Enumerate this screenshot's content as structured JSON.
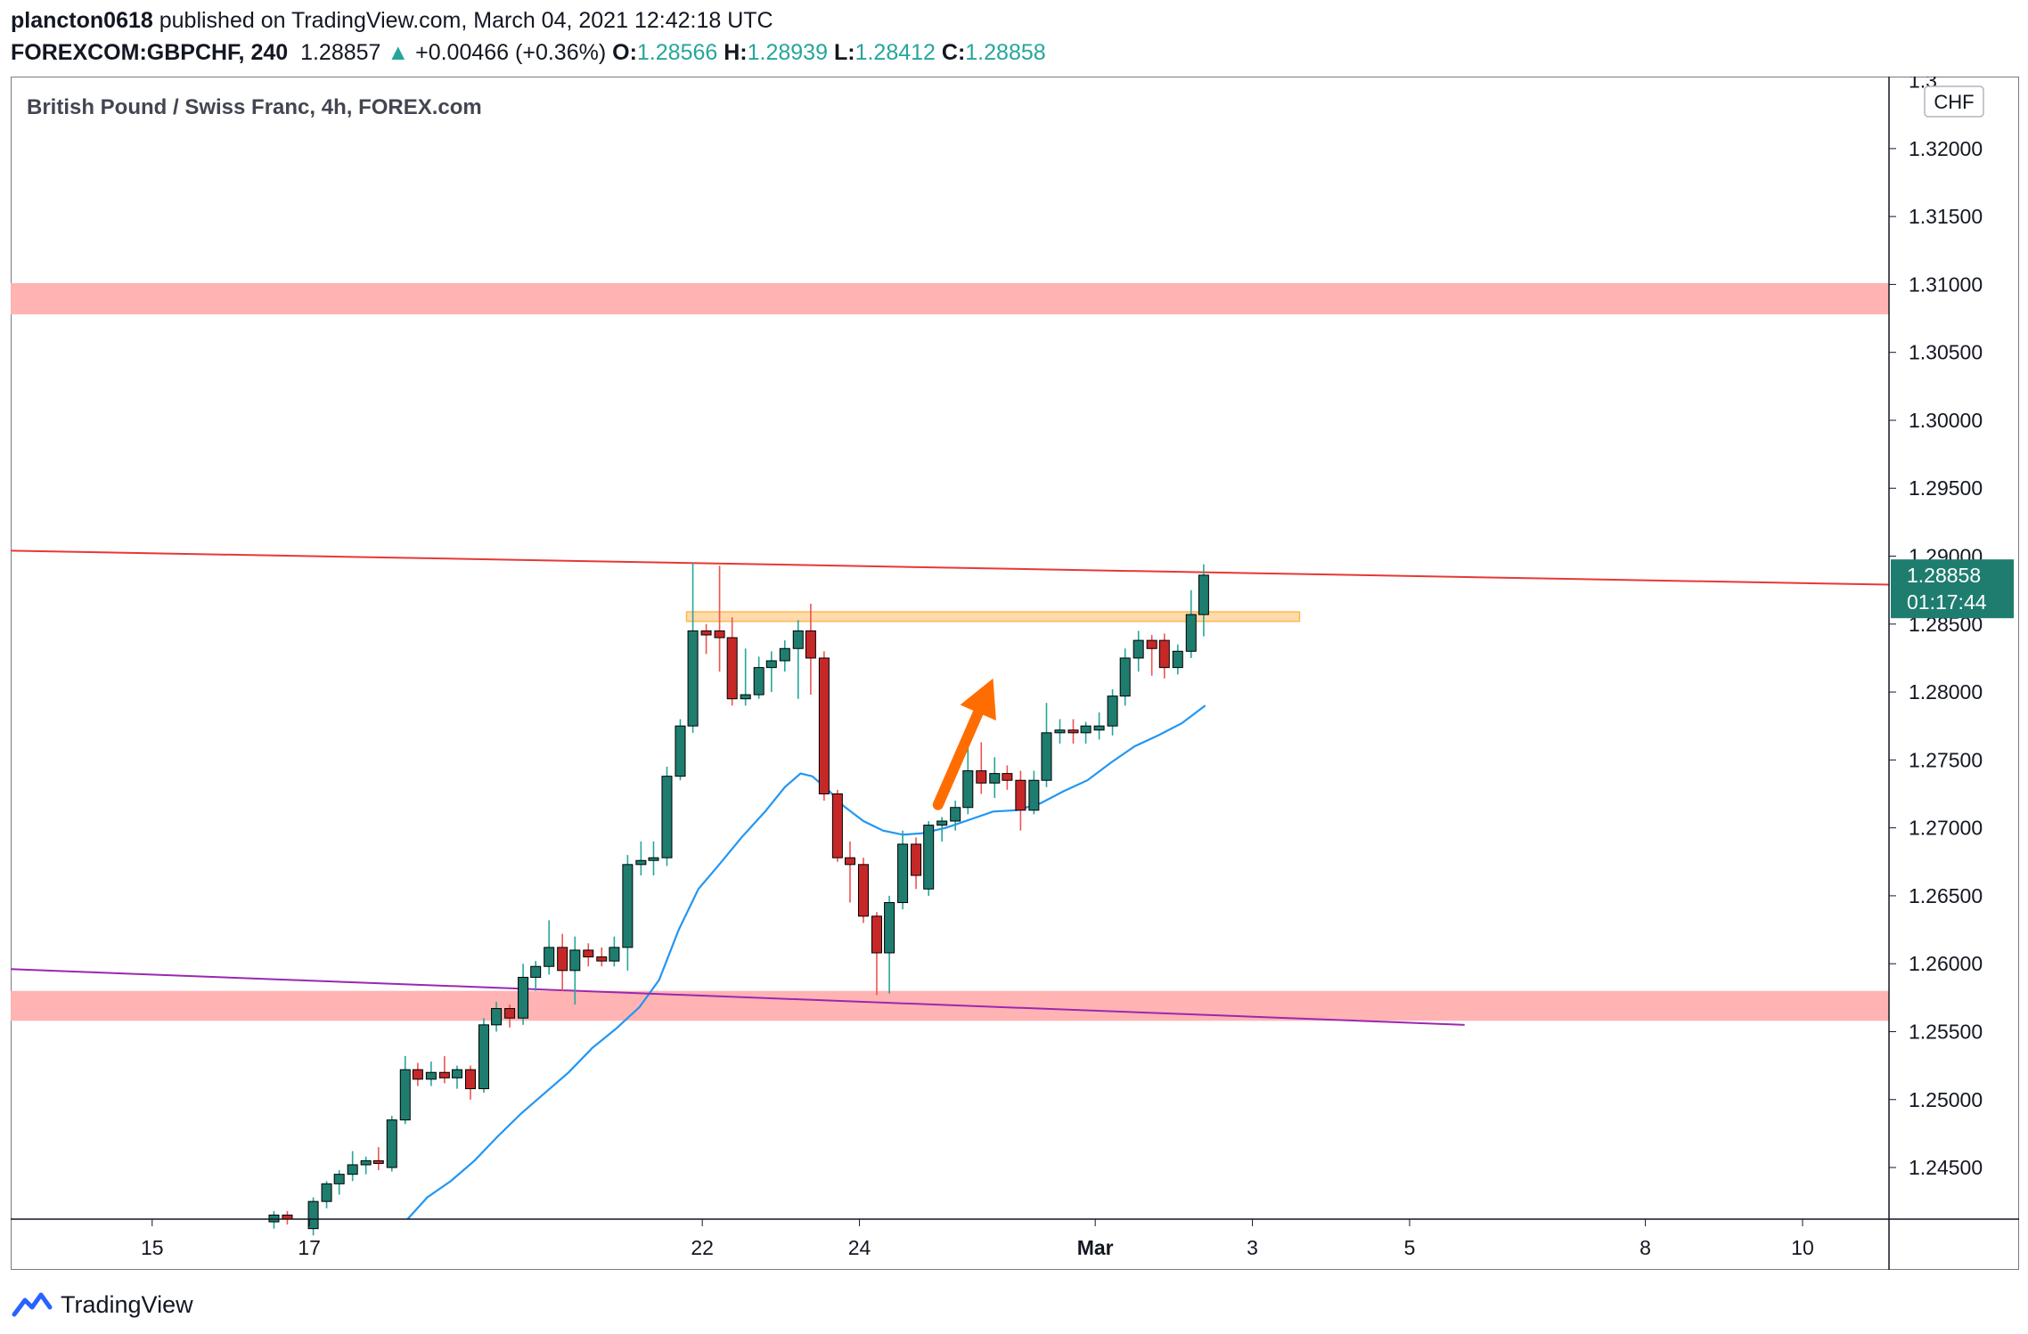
{
  "header": {
    "author": "plancton0618",
    "published": "published on TradingView.com, March 04, 2021 12:42:18 UTC",
    "symbol": "FOREXCOM:GBPCHF, 240",
    "last": "1.28857",
    "change_arrow": "▲",
    "change": "+0.00466 (+0.36%)",
    "o_label": "O:",
    "o": "1.28566",
    "h_label": "H:",
    "h": "1.28939",
    "l_label": "L:",
    "l": "1.28412",
    "c_label": "C:",
    "c": "1.28858"
  },
  "footer": {
    "brand": "TradingView",
    "logo_icon": "tradingview-logo-icon"
  },
  "colors": {
    "up": "#1e7d6f",
    "down": "#c62828",
    "wick_up": "#26a69a",
    "wick_down": "#ef5350",
    "ma": "#2196f3",
    "resistance_line": "#e53935",
    "support_line": "#9c27b0",
    "zone": "#ffb3b3",
    "zone_orange": "#ffd59e",
    "arrow": "#ff6d00",
    "price_tag": "#1e7d6f"
  },
  "chart_data": {
    "type": "candlestick",
    "title": "British Pound / Swiss Franc, 4h, FOREX.com",
    "currency_label": "CHF",
    "price_tag": {
      "value": "1.28858",
      "countdown": "01:17:44"
    },
    "y_ticks": [
      "1.32000",
      "1.31500",
      "1.31000",
      "1.30500",
      "1.30000",
      "1.29500",
      "1.29000",
      "1.28500",
      "1.28000",
      "1.27500",
      "1.27000",
      "1.26500",
      "1.26000",
      "1.25500",
      "1.25000",
      "1.24500"
    ],
    "y_top_tick_partial": "1.3",
    "ylim": [
      1.2412,
      1.3253
    ],
    "x_ticks": [
      {
        "label": "15",
        "day": 15
      },
      {
        "label": "17",
        "day": 17
      },
      {
        "label": "22",
        "day": 22
      },
      {
        "label": "24",
        "day": 24
      },
      {
        "label": "Mar",
        "day": 27
      },
      {
        "label": "3",
        "day": 29
      },
      {
        "label": "5",
        "day": 31
      },
      {
        "label": "8",
        "day": 34
      },
      {
        "label": "10",
        "day": 36
      }
    ],
    "xlim": [
      13.2,
      37.1
    ],
    "candles": [
      {
        "t": 16.55,
        "o": 1.241,
        "h": 1.2418,
        "l": 1.2405,
        "c": 1.2415
      },
      {
        "t": 16.72,
        "o": 1.2415,
        "h": 1.2418,
        "l": 1.2408,
        "c": 1.2412
      },
      {
        "t": 17.05,
        "o": 1.2405,
        "h": 1.2428,
        "l": 1.24,
        "c": 1.2425
      },
      {
        "t": 17.22,
        "o": 1.2425,
        "h": 1.244,
        "l": 1.242,
        "c": 1.2438
      },
      {
        "t": 17.38,
        "o": 1.2438,
        "h": 1.2448,
        "l": 1.243,
        "c": 1.2445
      },
      {
        "t": 17.55,
        "o": 1.2445,
        "h": 1.2462,
        "l": 1.244,
        "c": 1.2452
      },
      {
        "t": 17.72,
        "o": 1.2452,
        "h": 1.2458,
        "l": 1.2445,
        "c": 1.2455
      },
      {
        "t": 17.88,
        "o": 1.2455,
        "h": 1.2465,
        "l": 1.2448,
        "c": 1.2453
      },
      {
        "t": 18.05,
        "o": 1.245,
        "h": 1.2488,
        "l": 1.2447,
        "c": 1.2485
      },
      {
        "t": 18.22,
        "o": 1.2485,
        "h": 1.2532,
        "l": 1.2482,
        "c": 1.2522
      },
      {
        "t": 18.38,
        "o": 1.2522,
        "h": 1.2527,
        "l": 1.251,
        "c": 1.2515
      },
      {
        "t": 18.55,
        "o": 1.2515,
        "h": 1.2528,
        "l": 1.251,
        "c": 1.252
      },
      {
        "t": 18.72,
        "o": 1.252,
        "h": 1.2532,
        "l": 1.2512,
        "c": 1.2516
      },
      {
        "t": 18.88,
        "o": 1.2516,
        "h": 1.2525,
        "l": 1.2508,
        "c": 1.2522
      },
      {
        "t": 19.05,
        "o": 1.2522,
        "h": 1.2525,
        "l": 1.25,
        "c": 1.2508
      },
      {
        "t": 19.22,
        "o": 1.2508,
        "h": 1.256,
        "l": 1.2505,
        "c": 1.2555
      },
      {
        "t": 19.38,
        "o": 1.2555,
        "h": 1.2572,
        "l": 1.255,
        "c": 1.2567
      },
      {
        "t": 19.55,
        "o": 1.2567,
        "h": 1.257,
        "l": 1.2553,
        "c": 1.256
      },
      {
        "t": 19.72,
        "o": 1.256,
        "h": 1.26,
        "l": 1.2555,
        "c": 1.259
      },
      {
        "t": 19.88,
        "o": 1.259,
        "h": 1.2602,
        "l": 1.258,
        "c": 1.2598
      },
      {
        "t": 20.05,
        "o": 1.2598,
        "h": 1.2632,
        "l": 1.2592,
        "c": 1.2612
      },
      {
        "t": 20.22,
        "o": 1.2612,
        "h": 1.2622,
        "l": 1.258,
        "c": 1.2595
      },
      {
        "t": 20.38,
        "o": 1.2595,
        "h": 1.262,
        "l": 1.257,
        "c": 1.261
      },
      {
        "t": 20.55,
        "o": 1.261,
        "h": 1.2615,
        "l": 1.2598,
        "c": 1.2605
      },
      {
        "t": 20.72,
        "o": 1.2605,
        "h": 1.2612,
        "l": 1.2598,
        "c": 1.2602
      },
      {
        "t": 20.88,
        "o": 1.2602,
        "h": 1.262,
        "l": 1.2598,
        "c": 1.2612
      },
      {
        "t": 21.05,
        "o": 1.2612,
        "h": 1.268,
        "l": 1.2595,
        "c": 1.2673
      },
      {
        "t": 21.22,
        "o": 1.2673,
        "h": 1.269,
        "l": 1.2665,
        "c": 1.2676
      },
      {
        "t": 21.38,
        "o": 1.2676,
        "h": 1.269,
        "l": 1.2665,
        "c": 1.2678
      },
      {
        "t": 21.55,
        "o": 1.2678,
        "h": 1.2745,
        "l": 1.2672,
        "c": 1.2738
      },
      {
        "t": 21.72,
        "o": 1.2738,
        "h": 1.278,
        "l": 1.2735,
        "c": 1.2775
      },
      {
        "t": 21.88,
        "o": 1.2775,
        "h": 1.2895,
        "l": 1.277,
        "c": 1.2845
      },
      {
        "t": 22.05,
        "o": 1.2845,
        "h": 1.285,
        "l": 1.2828,
        "c": 1.2842
      },
      {
        "t": 22.22,
        "o": 1.2845,
        "h": 1.2893,
        "l": 1.2815,
        "c": 1.284
      },
      {
        "t": 22.38,
        "o": 1.284,
        "h": 1.2855,
        "l": 1.279,
        "c": 1.2795
      },
      {
        "t": 22.55,
        "o": 1.2795,
        "h": 1.2832,
        "l": 1.279,
        "c": 1.2798
      },
      {
        "t": 22.72,
        "o": 1.2798,
        "h": 1.2826,
        "l": 1.2795,
        "c": 1.2818
      },
      {
        "t": 22.88,
        "o": 1.2818,
        "h": 1.283,
        "l": 1.28,
        "c": 1.2823
      },
      {
        "t": 23.05,
        "o": 1.2823,
        "h": 1.2838,
        "l": 1.2815,
        "c": 1.2832
      },
      {
        "t": 23.22,
        "o": 1.2832,
        "h": 1.2853,
        "l": 1.2795,
        "c": 1.2845
      },
      {
        "t": 23.38,
        "o": 1.2845,
        "h": 1.2865,
        "l": 1.2798,
        "c": 1.2825
      },
      {
        "t": 23.55,
        "o": 1.2825,
        "h": 1.283,
        "l": 1.272,
        "c": 1.2725
      },
      {
        "t": 23.72,
        "o": 1.2725,
        "h": 1.2728,
        "l": 1.2675,
        "c": 1.2678
      },
      {
        "t": 23.88,
        "o": 1.2678,
        "h": 1.269,
        "l": 1.2645,
        "c": 1.2673
      },
      {
        "t": 24.05,
        "o": 1.2673,
        "h": 1.2678,
        "l": 1.263,
        "c": 1.2635
      },
      {
        "t": 24.22,
        "o": 1.2635,
        "h": 1.2638,
        "l": 1.2577,
        "c": 1.2608
      },
      {
        "t": 24.38,
        "o": 1.2608,
        "h": 1.265,
        "l": 1.2578,
        "c": 1.2645
      },
      {
        "t": 24.55,
        "o": 1.2645,
        "h": 1.2698,
        "l": 1.264,
        "c": 1.2688
      },
      {
        "t": 24.72,
        "o": 1.2688,
        "h": 1.2693,
        "l": 1.2655,
        "c": 1.2665
      },
      {
        "t": 24.88,
        "o": 1.2655,
        "h": 1.2705,
        "l": 1.265,
        "c": 1.2702
      },
      {
        "t": 25.05,
        "o": 1.2702,
        "h": 1.2708,
        "l": 1.269,
        "c": 1.2705
      },
      {
        "t": 25.22,
        "o": 1.2705,
        "h": 1.272,
        "l": 1.2698,
        "c": 1.2715
      },
      {
        "t": 25.38,
        "o": 1.2715,
        "h": 1.2775,
        "l": 1.271,
        "c": 1.2742
      },
      {
        "t": 25.55,
        "o": 1.2742,
        "h": 1.2763,
        "l": 1.2725,
        "c": 1.2733
      },
      {
        "t": 25.72,
        "o": 1.2733,
        "h": 1.2752,
        "l": 1.2722,
        "c": 1.274
      },
      {
        "t": 25.88,
        "o": 1.274,
        "h": 1.2746,
        "l": 1.2728,
        "c": 1.2735
      },
      {
        "t": 26.05,
        "o": 1.2735,
        "h": 1.2742,
        "l": 1.2698,
        "c": 1.2713
      },
      {
        "t": 26.22,
        "o": 1.2713,
        "h": 1.2742,
        "l": 1.271,
        "c": 1.2735
      },
      {
        "t": 26.38,
        "o": 1.2735,
        "h": 1.2792,
        "l": 1.273,
        "c": 1.277
      },
      {
        "t": 26.55,
        "o": 1.277,
        "h": 1.278,
        "l": 1.2762,
        "c": 1.2772
      },
      {
        "t": 26.72,
        "o": 1.2772,
        "h": 1.278,
        "l": 1.2762,
        "c": 1.277
      },
      {
        "t": 26.88,
        "o": 1.277,
        "h": 1.2778,
        "l": 1.2762,
        "c": 1.2775
      },
      {
        "t": 27.05,
        "o": 1.2772,
        "h": 1.2785,
        "l": 1.2765,
        "c": 1.2775
      },
      {
        "t": 27.22,
        "o": 1.2775,
        "h": 1.2802,
        "l": 1.2768,
        "c": 1.2797
      },
      {
        "t": 27.38,
        "o": 1.2797,
        "h": 1.2832,
        "l": 1.279,
        "c": 1.2825
      },
      {
        "t": 27.55,
        "o": 1.2825,
        "h": 1.2845,
        "l": 1.2815,
        "c": 1.2838
      },
      {
        "t": 27.72,
        "o": 1.2838,
        "h": 1.2842,
        "l": 1.2812,
        "c": 1.2832
      },
      {
        "t": 27.88,
        "o": 1.2838,
        "h": 1.2843,
        "l": 1.281,
        "c": 1.2818
      },
      {
        "t": 28.05,
        "o": 1.2818,
        "h": 1.2835,
        "l": 1.2813,
        "c": 1.283
      },
      {
        "t": 28.22,
        "o": 1.283,
        "h": 1.2875,
        "l": 1.2825,
        "c": 1.2857
      },
      {
        "t": 28.38,
        "o": 1.2857,
        "h": 1.2894,
        "l": 1.2841,
        "c": 1.2886
      }
    ],
    "moving_average": [
      [
        18.25,
        1.2412
      ],
      [
        18.5,
        1.2428
      ],
      [
        18.8,
        1.244
      ],
      [
        19.1,
        1.2455
      ],
      [
        19.4,
        1.2473
      ],
      [
        19.7,
        1.249
      ],
      [
        20.0,
        1.2505
      ],
      [
        20.3,
        1.252
      ],
      [
        20.6,
        1.2538
      ],
      [
        20.9,
        1.2552
      ],
      [
        21.2,
        1.2568
      ],
      [
        21.45,
        1.2588
      ],
      [
        21.7,
        1.2625
      ],
      [
        21.95,
        1.2655
      ],
      [
        22.2,
        1.2672
      ],
      [
        22.5,
        1.2693
      ],
      [
        22.8,
        1.2712
      ],
      [
        23.05,
        1.273
      ],
      [
        23.25,
        1.274
      ],
      [
        23.4,
        1.2738
      ],
      [
        23.6,
        1.2728
      ],
      [
        23.8,
        1.2716
      ],
      [
        24.05,
        1.2705
      ],
      [
        24.3,
        1.2698
      ],
      [
        24.55,
        1.2695
      ],
      [
        24.8,
        1.2696
      ],
      [
        25.1,
        1.27
      ],
      [
        25.4,
        1.2706
      ],
      [
        25.7,
        1.2712
      ],
      [
        26.0,
        1.2713
      ],
      [
        26.3,
        1.2718
      ],
      [
        26.6,
        1.2727
      ],
      [
        26.9,
        1.2735
      ],
      [
        27.2,
        1.2748
      ],
      [
        27.5,
        1.276
      ],
      [
        27.8,
        1.2768
      ],
      [
        28.1,
        1.2777
      ],
      [
        28.4,
        1.279
      ]
    ],
    "resistance_trendline": {
      "from": [
        13.2,
        1.2904
      ],
      "to": [
        37.1,
        1.2879
      ]
    },
    "support_trendline": {
      "from": [
        13.2,
        1.2596
      ],
      "to": [
        31.7,
        1.2555
      ]
    },
    "zones": [
      {
        "from": 13.2,
        "to": 37.1,
        "y1": 1.3078,
        "y2": 1.3101,
        "color": "pink"
      },
      {
        "from": 13.2,
        "to": 37.1,
        "y1": 1.2558,
        "y2": 1.258,
        "color": "pink"
      },
      {
        "from": 21.8,
        "to": 29.6,
        "y1": 1.2852,
        "y2": 1.2859,
        "color": "orange"
      }
    ],
    "arrow": {
      "from": [
        25.0,
        1.2717
      ],
      "to": [
        25.7,
        1.281
      ]
    },
    "grid": false,
    "legend": "none"
  }
}
